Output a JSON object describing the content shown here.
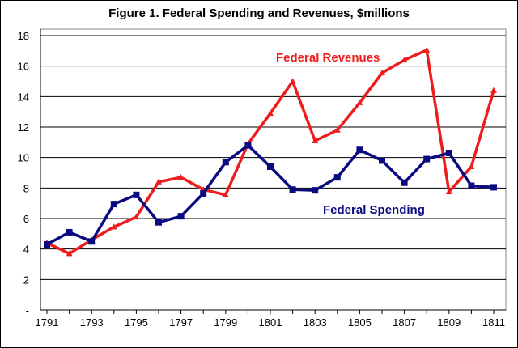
{
  "chart_data": {
    "type": "line",
    "title": "Figure 1. Federal Spending and Revenues, $millions",
    "xlabel": "",
    "ylabel": "",
    "x": [
      1791,
      1792,
      1793,
      1794,
      1795,
      1796,
      1797,
      1798,
      1799,
      1800,
      1801,
      1802,
      1803,
      1804,
      1805,
      1806,
      1807,
      1808,
      1809,
      1810,
      1811
    ],
    "x_tick_labels": [
      "1791",
      "1793",
      "1795",
      "1797",
      "1799",
      "1801",
      "1803",
      "1805",
      "1807",
      "1809",
      "1811"
    ],
    "y_tick_labels": [
      "-",
      "2",
      "4",
      "6",
      "8",
      "10",
      "12",
      "14",
      "16",
      "18"
    ],
    "ylim": [
      0,
      18
    ],
    "grid": "horizontal",
    "legend": "inline labels",
    "series": [
      {
        "name": "Federal Revenues",
        "color": "#ee1c1c",
        "marker": "triangle",
        "values": [
          4.4,
          3.7,
          4.6,
          5.45,
          6.1,
          8.4,
          8.7,
          7.9,
          7.55,
          10.9,
          12.9,
          15.0,
          11.1,
          11.8,
          13.6,
          15.55,
          16.4,
          17.05,
          7.75,
          9.4,
          14.4
        ]
      },
      {
        "name": "Federal Spending",
        "color": "#0a0a80",
        "marker": "square",
        "values": [
          4.3,
          5.1,
          4.5,
          6.95,
          7.55,
          5.75,
          6.15,
          7.65,
          9.7,
          10.8,
          9.4,
          7.9,
          7.85,
          8.7,
          10.5,
          9.8,
          8.35,
          9.9,
          10.3,
          8.15,
          8.05
        ]
      }
    ]
  }
}
